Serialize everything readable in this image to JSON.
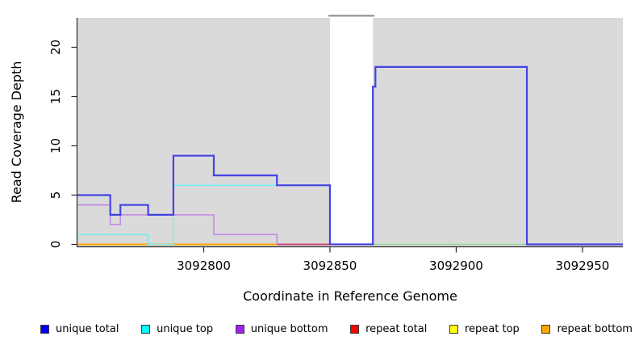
{
  "chart_data": {
    "type": "line",
    "subtype": "step-coverage",
    "title": "",
    "xlabel": "Coordinate in Reference Genome",
    "ylabel": "Read Coverage Depth",
    "xlim": [
      3092750,
      3092966
    ],
    "ylim": [
      0,
      23
    ],
    "x_ticks": [
      3092800,
      3092850,
      3092900,
      3092950
    ],
    "y_ticks": [
      0,
      5,
      10,
      15,
      20
    ],
    "grid": "off",
    "panel_bg": "#DADADA",
    "gap_region": {
      "start": 3092850,
      "end": 3092867,
      "fill": "#FFFFFF",
      "clip_line_color": "#8C8C8C"
    },
    "series": [
      {
        "name": "repeat total",
        "color": "#C64A72",
        "width": 2,
        "steps": [
          [
            3092829,
            0
          ]
        ],
        "end": 3092850
      },
      {
        "name": "repeat top",
        "color": "#90DC96",
        "width": 1.6,
        "steps": [
          [
            3092867,
            0
          ]
        ],
        "end": 3092928
      },
      {
        "name": "repeat bottom",
        "color": "#FFA500",
        "width": 2,
        "steps": [
          [
            3092750,
            0
          ]
        ],
        "end": 3092829
      },
      {
        "name": "unique bottom",
        "color": "#C18BE6",
        "width": 1.6,
        "steps": [
          [
            3092750,
            4
          ],
          [
            3092763,
            2
          ],
          [
            3092767,
            3
          ],
          [
            3092804,
            1
          ],
          [
            3092829,
            0
          ]
        ],
        "end": 3092829
      },
      {
        "name": "unique top",
        "color": "#79EDED",
        "width": 1.6,
        "steps": [
          [
            3092750,
            1
          ],
          [
            3092778,
            0
          ],
          [
            3092788,
            6
          ],
          [
            3092850,
            0
          ]
        ],
        "end": 3092850
      },
      {
        "name": "unique total",
        "color": "#4343E2",
        "width": 2.2,
        "steps": [
          [
            3092750,
            5
          ],
          [
            3092763,
            3
          ],
          [
            3092767,
            4
          ],
          [
            3092778,
            3
          ],
          [
            3092788,
            9
          ],
          [
            3092804,
            7
          ],
          [
            3092829,
            6
          ],
          [
            3092850,
            0
          ],
          [
            3092867,
            16
          ],
          [
            3092868,
            18
          ],
          [
            3092928,
            0
          ]
        ],
        "end": 3092966
      }
    ],
    "legend": {
      "position": "bottom",
      "items": [
        {
          "label": "unique total",
          "color": "#0000FF"
        },
        {
          "label": "unique top",
          "color": "#00FFFF"
        },
        {
          "label": "unique bottom",
          "color": "#A020F0"
        },
        {
          "label": "repeat total",
          "color": "#FF0000"
        },
        {
          "label": "repeat top",
          "color": "#FFFF00"
        },
        {
          "label": "repeat bottom",
          "color": "#FFA500"
        }
      ]
    },
    "axis_color": "#2b2b2b",
    "tick_label_color": "#000000"
  }
}
